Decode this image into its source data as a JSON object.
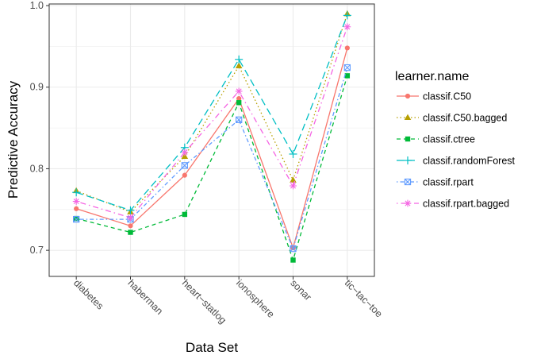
{
  "chart_data": {
    "type": "line",
    "xlabel": "Data Set",
    "ylabel": "Predictive Accuracy",
    "categories": [
      "diabetes",
      "haberman",
      "heart−statlog",
      "ionosphere",
      "sonar",
      "tic−tac−toe"
    ],
    "ylim": [
      0.668,
      1.002
    ],
    "yticks": [
      "0.7",
      "0.8",
      "0.9",
      "1.0"
    ],
    "ytick_values": [
      0.7,
      0.8,
      0.9,
      1.0
    ],
    "grid": true,
    "legend_title": "learner.name",
    "legend_position": "right",
    "series": [
      {
        "name": "classif.C50",
        "color": "#F8766D",
        "dash": "solid",
        "marker": "circle",
        "values": [
          0.751,
          0.73,
          0.792,
          0.886,
          0.703,
          0.948
        ]
      },
      {
        "name": "classif.C50.bagged",
        "color": "#B79F00",
        "dash": "dotted",
        "marker": "triangle",
        "values": [
          0.773,
          0.747,
          0.815,
          0.926,
          0.786,
          0.99
        ]
      },
      {
        "name": "classif.ctree",
        "color": "#00BA38",
        "dash": "dashed",
        "marker": "square",
        "values": [
          0.739,
          0.722,
          0.744,
          0.881,
          0.688,
          0.914
        ]
      },
      {
        "name": "classif.randomForest",
        "color": "#00BFC4",
        "dash": "longdash",
        "marker": "plus",
        "values": [
          0.771,
          0.749,
          0.826,
          0.934,
          0.818,
          0.988
        ]
      },
      {
        "name": "classif.rpart",
        "color": "#619CFF",
        "dash": "dotdash-fine",
        "marker": "squarecross",
        "values": [
          0.738,
          0.738,
          0.804,
          0.86,
          0.702,
          0.924
        ]
      },
      {
        "name": "classif.rpart.bagged",
        "color": "#F564E3",
        "dash": "dotdash",
        "marker": "asterisk",
        "values": [
          0.76,
          0.74,
          0.82,
          0.895,
          0.779,
          0.974
        ]
      }
    ]
  }
}
